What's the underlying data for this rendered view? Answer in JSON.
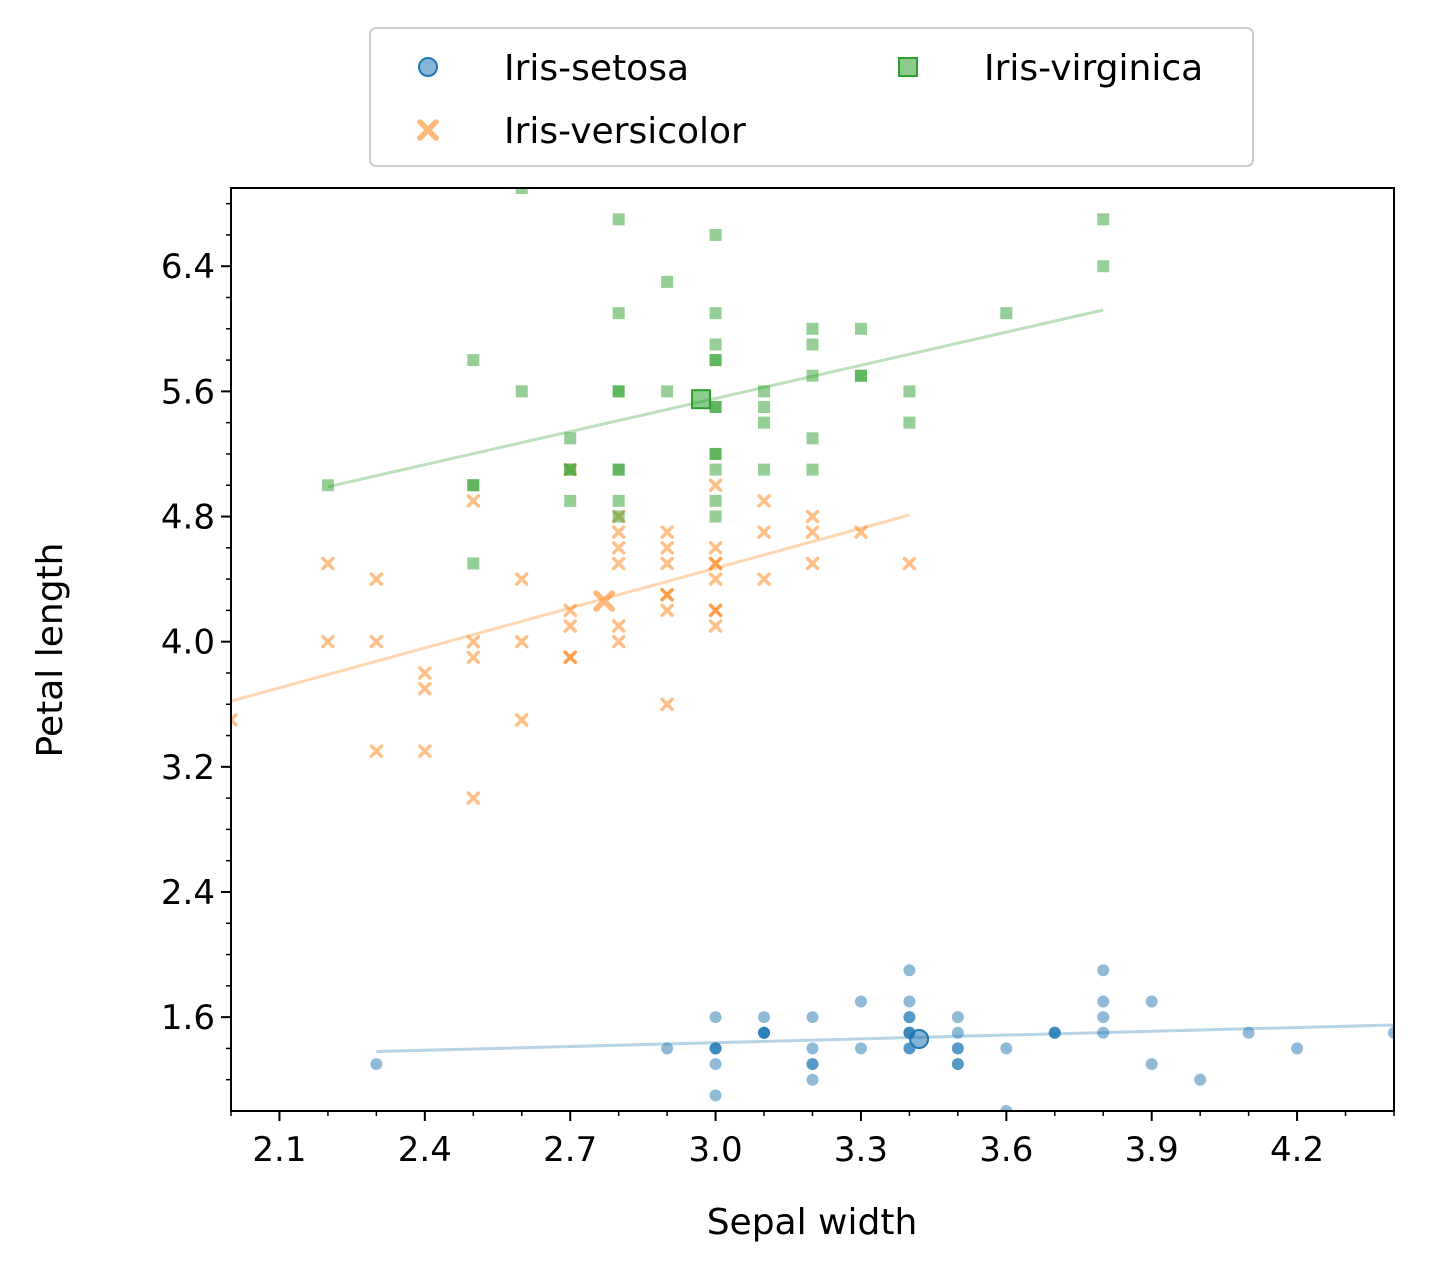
{
  "chart_data": {
    "type": "scatter",
    "xlabel": "Sepal width",
    "ylabel": "Petal length",
    "xlim": [
      2.0,
      4.4
    ],
    "ylim": [
      1.0,
      6.9
    ],
    "xticks": [
      "2.1",
      "2.4",
      "2.7",
      "3.0",
      "3.3",
      "3.6",
      "3.9",
      "4.2"
    ],
    "yticks": [
      "1.6",
      "2.4",
      "3.2",
      "4.0",
      "4.8",
      "5.6",
      "6.4"
    ],
    "legend": {
      "placement": "top-center, outside plot",
      "columns": 2
    },
    "grid": false,
    "series": [
      {
        "name": "Iris-setosa",
        "marker": "circle",
        "color": "#1f77b4",
        "mean": [
          3.42,
          1.46
        ],
        "fit": {
          "x": [
            2.3,
            4.4
          ],
          "y": [
            1.38,
            1.55
          ]
        },
        "points": [
          [
            3.5,
            1.4
          ],
          [
            3.0,
            1.4
          ],
          [
            3.2,
            1.3
          ],
          [
            3.1,
            1.5
          ],
          [
            3.6,
            1.4
          ],
          [
            3.9,
            1.7
          ],
          [
            3.4,
            1.4
          ],
          [
            3.4,
            1.5
          ],
          [
            2.9,
            1.4
          ],
          [
            3.1,
            1.5
          ],
          [
            3.7,
            1.5
          ],
          [
            3.4,
            1.6
          ],
          [
            3.0,
            1.4
          ],
          [
            3.0,
            1.1
          ],
          [
            4.0,
            1.2
          ],
          [
            4.4,
            1.5
          ],
          [
            3.9,
            1.3
          ],
          [
            3.5,
            1.4
          ],
          [
            3.8,
            1.7
          ],
          [
            3.8,
            1.5
          ],
          [
            3.4,
            1.7
          ],
          [
            3.7,
            1.5
          ],
          [
            3.6,
            1.0
          ],
          [
            3.3,
            1.7
          ],
          [
            3.4,
            1.9
          ],
          [
            3.0,
            1.6
          ],
          [
            3.4,
            1.6
          ],
          [
            3.5,
            1.5
          ],
          [
            3.4,
            1.4
          ],
          [
            3.2,
            1.6
          ],
          [
            3.1,
            1.6
          ],
          [
            3.4,
            1.5
          ],
          [
            4.1,
            1.5
          ],
          [
            4.2,
            1.4
          ],
          [
            3.1,
            1.5
          ],
          [
            3.2,
            1.2
          ],
          [
            3.5,
            1.3
          ],
          [
            3.1,
            1.5
          ],
          [
            3.0,
            1.3
          ],
          [
            3.4,
            1.5
          ],
          [
            3.5,
            1.3
          ],
          [
            2.3,
            1.3
          ],
          [
            3.2,
            1.3
          ],
          [
            3.5,
            1.6
          ],
          [
            3.8,
            1.9
          ],
          [
            3.0,
            1.4
          ],
          [
            3.8,
            1.6
          ],
          [
            3.2,
            1.4
          ],
          [
            3.7,
            1.5
          ],
          [
            3.3,
            1.4
          ]
        ]
      },
      {
        "name": "Iris-versicolor",
        "marker": "x",
        "color": "#ff7f0e",
        "mean": [
          2.77,
          4.26
        ],
        "fit": {
          "x": [
            2.0,
            3.4
          ],
          "y": [
            3.62,
            4.81
          ]
        },
        "points": [
          [
            3.2,
            4.7
          ],
          [
            3.2,
            4.5
          ],
          [
            3.1,
            4.9
          ],
          [
            2.3,
            4.0
          ],
          [
            2.8,
            4.6
          ],
          [
            2.8,
            4.5
          ],
          [
            3.3,
            4.7
          ],
          [
            2.4,
            3.3
          ],
          [
            2.9,
            4.6
          ],
          [
            2.7,
            3.9
          ],
          [
            2.0,
            3.5
          ],
          [
            3.0,
            4.2
          ],
          [
            2.2,
            4.0
          ],
          [
            2.9,
            4.7
          ],
          [
            2.9,
            3.6
          ],
          [
            3.1,
            4.4
          ],
          [
            3.0,
            4.5
          ],
          [
            2.7,
            4.1
          ],
          [
            2.2,
            4.5
          ],
          [
            2.5,
            3.9
          ],
          [
            3.2,
            4.8
          ],
          [
            2.8,
            4.0
          ],
          [
            2.5,
            4.9
          ],
          [
            2.8,
            4.7
          ],
          [
            2.9,
            4.3
          ],
          [
            3.0,
            4.4
          ],
          [
            2.8,
            4.8
          ],
          [
            3.0,
            5.0
          ],
          [
            2.9,
            4.5
          ],
          [
            2.6,
            3.5
          ],
          [
            2.4,
            3.8
          ],
          [
            2.4,
            3.7
          ],
          [
            2.7,
            3.9
          ],
          [
            2.7,
            5.1
          ],
          [
            3.0,
            4.5
          ],
          [
            3.4,
            4.5
          ],
          [
            3.1,
            4.7
          ],
          [
            2.3,
            4.4
          ],
          [
            3.0,
            4.1
          ],
          [
            2.5,
            4.0
          ],
          [
            2.6,
            4.4
          ],
          [
            3.0,
            4.6
          ],
          [
            2.6,
            4.0
          ],
          [
            2.3,
            3.3
          ],
          [
            2.7,
            4.2
          ],
          [
            3.0,
            4.2
          ],
          [
            2.9,
            4.2
          ],
          [
            2.9,
            4.3
          ],
          [
            2.5,
            3.0
          ],
          [
            2.8,
            4.1
          ]
        ]
      },
      {
        "name": "Iris-virginica",
        "marker": "square",
        "color": "#2ca02c",
        "mean": [
          2.97,
          5.55
        ],
        "fit": {
          "x": [
            2.2,
            3.8
          ],
          "y": [
            4.99,
            6.12
          ]
        },
        "points": [
          [
            3.3,
            6.0
          ],
          [
            2.7,
            5.1
          ],
          [
            3.0,
            5.9
          ],
          [
            2.9,
            5.6
          ],
          [
            3.0,
            5.8
          ],
          [
            3.0,
            6.6
          ],
          [
            2.5,
            4.5
          ],
          [
            2.9,
            6.3
          ],
          [
            2.5,
            5.8
          ],
          [
            3.6,
            6.1
          ],
          [
            3.2,
            5.1
          ],
          [
            2.7,
            5.3
          ],
          [
            3.0,
            5.5
          ],
          [
            2.5,
            5.0
          ],
          [
            2.8,
            5.1
          ],
          [
            3.2,
            5.3
          ],
          [
            3.0,
            5.5
          ],
          [
            3.8,
            6.7
          ],
          [
            2.6,
            6.9
          ],
          [
            2.2,
            5.0
          ],
          [
            3.2,
            5.7
          ],
          [
            2.8,
            4.9
          ],
          [
            2.8,
            6.7
          ],
          [
            2.7,
            4.9
          ],
          [
            3.3,
            5.7
          ],
          [
            3.2,
            6.0
          ],
          [
            2.8,
            4.8
          ],
          [
            3.0,
            4.9
          ],
          [
            2.8,
            5.6
          ],
          [
            3.0,
            5.8
          ],
          [
            2.8,
            6.1
          ],
          [
            3.8,
            6.4
          ],
          [
            2.8,
            5.6
          ],
          [
            2.8,
            5.1
          ],
          [
            2.6,
            5.6
          ],
          [
            3.0,
            6.1
          ],
          [
            3.4,
            5.6
          ],
          [
            3.1,
            5.5
          ],
          [
            3.0,
            4.8
          ],
          [
            3.1,
            5.4
          ],
          [
            3.1,
            5.6
          ],
          [
            3.1,
            5.1
          ],
          [
            2.7,
            5.1
          ],
          [
            3.2,
            5.9
          ],
          [
            3.3,
            5.7
          ],
          [
            3.0,
            5.2
          ],
          [
            2.5,
            5.0
          ],
          [
            3.0,
            5.2
          ],
          [
            3.4,
            5.4
          ],
          [
            3.0,
            5.1
          ]
        ]
      }
    ]
  }
}
